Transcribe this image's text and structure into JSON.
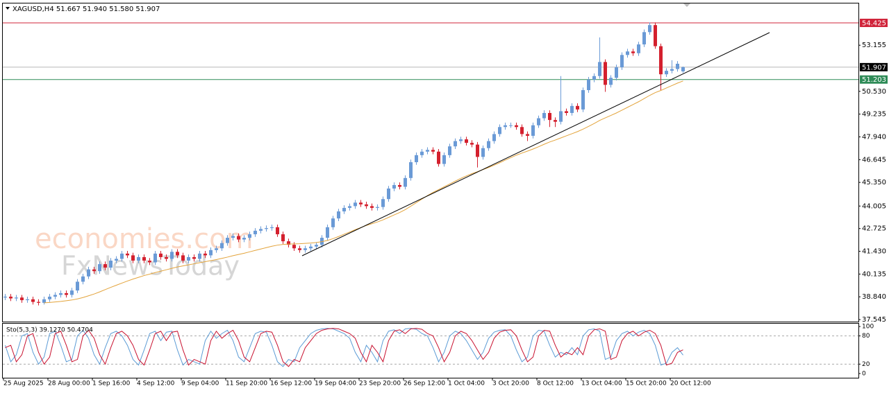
{
  "chart_data": [
    {
      "type": "candlestick",
      "title": "XAGUSD,H4  51.667 51.940 51.580 51.907",
      "watermark": [
        "economies.com",
        "FxNewsToday"
      ],
      "up_color": "#6a9ad6",
      "down_color": "#d4202e",
      "categories": [
        "25 Aug 2025",
        null,
        null,
        null,
        null,
        null,
        null,
        null,
        "28 Aug 00:00",
        null,
        null,
        null,
        null,
        null,
        null,
        null,
        "1 Sep 16:00",
        null,
        null,
        null,
        null,
        null,
        null,
        null,
        "4 Sep 12:00",
        null,
        null,
        null,
        null,
        null,
        null,
        null,
        "9 Sep 04:00",
        null,
        null,
        null,
        null,
        null,
        null,
        null,
        "11 Sep 20:00",
        null,
        null,
        null,
        null,
        null,
        null,
        null,
        "16 Sep 12:00",
        null,
        null,
        null,
        null,
        null,
        null,
        null,
        "19 Sep 04:00",
        null,
        null,
        null,
        null,
        null,
        null,
        null,
        "23 Sep 20:00",
        null,
        null,
        null,
        null,
        null,
        null,
        null,
        "26 Sep 12:00",
        null,
        null,
        null,
        null,
        null,
        null,
        null,
        "1 Oct 04:00",
        null,
        null,
        null,
        null,
        null,
        null,
        null,
        "3 Oct 20:00",
        null,
        null,
        null,
        null,
        null,
        null,
        null,
        "8 Oct 12:00",
        null,
        null,
        null,
        null,
        null,
        null,
        null,
        "13 Oct 04:00",
        null,
        null,
        null,
        null,
        null,
        null,
        null,
        "15 Oct 20:00",
        null,
        null,
        null,
        null,
        null,
        null,
        null,
        "20 Oct 12:00",
        null,
        null
      ],
      "open": [
        38.8,
        38.85,
        38.75,
        38.8,
        38.65,
        38.7,
        38.55,
        38.5,
        38.7,
        38.85,
        38.95,
        39.05,
        38.95,
        39.2,
        39.7,
        40.0,
        40.4,
        40.3,
        40.7,
        40.5,
        40.9,
        41.0,
        41.3,
        41.2,
        40.9,
        41.1,
        40.9,
        40.8,
        41.3,
        41.1,
        41.0,
        41.4,
        41.2,
        40.9,
        41.1,
        41.0,
        41.3,
        41.2,
        41.5,
        41.6,
        41.9,
        42.2,
        42.3,
        42.1,
        42.2,
        42.4,
        42.6,
        42.7,
        42.75,
        42.8,
        42.4,
        42.0,
        41.8,
        41.6,
        41.5,
        41.6,
        41.7,
        41.8,
        42.2,
        42.8,
        43.3,
        43.7,
        43.9,
        44.0,
        44.2,
        44.1,
        44.0,
        43.9,
        43.95,
        44.4,
        45.0,
        45.2,
        45.1,
        45.6,
        46.5,
        46.9,
        47.1,
        47.2,
        47.1,
        46.4,
        46.9,
        47.4,
        47.7,
        47.8,
        47.6,
        47.5,
        46.8,
        47.3,
        47.7,
        48.1,
        48.5,
        48.6,
        48.6,
        48.5,
        48.1,
        48.0,
        48.6,
        49.0,
        49.3,
        48.9,
        48.8,
        49.4,
        49.3,
        49.7,
        49.5,
        50.6,
        51.2,
        51.4,
        52.2,
        50.9,
        51.3,
        51.9,
        52.6,
        52.8,
        52.7,
        53.2,
        53.9,
        54.3,
        53.1,
        51.5,
        51.7,
        51.8,
        51.667
      ],
      "high": [
        39.0,
        39.0,
        38.95,
        38.95,
        38.85,
        38.85,
        38.7,
        38.85,
        39.0,
        39.1,
        39.2,
        39.2,
        39.35,
        39.85,
        40.15,
        40.55,
        40.55,
        40.85,
        40.85,
        41.05,
        41.15,
        41.45,
        41.45,
        41.35,
        41.25,
        41.25,
        41.05,
        41.45,
        41.45,
        41.25,
        41.55,
        41.55,
        41.35,
        41.25,
        41.25,
        41.45,
        41.45,
        41.65,
        41.75,
        42.05,
        42.35,
        42.45,
        42.45,
        42.35,
        42.55,
        42.75,
        42.85,
        42.9,
        42.95,
        42.95,
        42.55,
        42.15,
        41.95,
        41.75,
        41.75,
        41.85,
        41.95,
        42.35,
        42.95,
        43.45,
        43.85,
        44.05,
        44.15,
        44.35,
        44.35,
        44.25,
        44.15,
        44.1,
        44.55,
        45.15,
        45.35,
        45.35,
        45.75,
        46.65,
        47.05,
        47.25,
        47.35,
        47.35,
        47.25,
        47.05,
        47.55,
        47.85,
        47.95,
        47.95,
        47.75,
        47.65,
        47.45,
        47.85,
        48.25,
        48.65,
        48.75,
        48.75,
        48.75,
        48.65,
        48.25,
        48.75,
        49.15,
        49.45,
        49.45,
        49.05,
        51.4,
        49.55,
        49.85,
        49.85,
        50.75,
        51.35,
        51.55,
        53.6,
        52.35,
        51.45,
        52.05,
        52.75,
        52.95,
        52.95,
        53.35,
        54.05,
        54.45,
        54.45,
        53.25,
        51.85,
        52.3,
        52.25,
        51.94
      ],
      "low": [
        38.65,
        38.6,
        38.6,
        38.5,
        38.5,
        38.4,
        38.35,
        38.4,
        38.55,
        38.7,
        38.8,
        38.8,
        38.8,
        39.05,
        39.55,
        39.85,
        40.15,
        40.15,
        40.35,
        40.35,
        40.75,
        40.85,
        41.05,
        40.75,
        40.75,
        40.75,
        40.65,
        40.65,
        40.95,
        40.85,
        40.85,
        41.05,
        40.75,
        40.75,
        40.85,
        40.85,
        41.05,
        41.05,
        41.35,
        41.45,
        41.75,
        42.05,
        41.95,
        41.95,
        42.05,
        42.25,
        42.45,
        42.55,
        42.6,
        42.25,
        41.85,
        41.65,
        41.45,
        41.35,
        41.35,
        41.45,
        41.55,
        41.65,
        42.05,
        42.65,
        43.15,
        43.55,
        43.75,
        43.85,
        43.95,
        43.85,
        43.75,
        43.75,
        43.8,
        44.25,
        44.85,
        44.95,
        44.95,
        45.45,
        46.35,
        46.75,
        46.95,
        46.95,
        46.25,
        46.25,
        46.75,
        47.25,
        47.55,
        47.45,
        47.35,
        46.2,
        46.65,
        47.15,
        47.55,
        47.95,
        48.35,
        48.45,
        48.35,
        47.95,
        47.7,
        47.85,
        48.45,
        48.85,
        48.5,
        48.5,
        48.65,
        49.15,
        49.15,
        49.35,
        49.35,
        50.45,
        51.05,
        51.25,
        50.5,
        50.75,
        51.15,
        51.75,
        52.45,
        52.55,
        52.55,
        53.05,
        53.75,
        52.95,
        50.6,
        51.35,
        51.55,
        51.65,
        51.58
      ],
      "close": [
        38.85,
        38.75,
        38.8,
        38.65,
        38.7,
        38.55,
        38.5,
        38.7,
        38.85,
        38.95,
        39.05,
        38.95,
        39.2,
        39.7,
        40.0,
        40.4,
        40.3,
        40.7,
        40.5,
        40.9,
        41.0,
        41.3,
        41.2,
        40.9,
        41.1,
        40.9,
        40.8,
        41.3,
        41.1,
        41.0,
        41.4,
        41.2,
        40.9,
        41.1,
        41.0,
        41.3,
        41.2,
        41.5,
        41.6,
        41.9,
        42.2,
        42.3,
        42.1,
        42.2,
        42.4,
        42.6,
        42.7,
        42.75,
        42.8,
        42.4,
        42.0,
        41.8,
        41.6,
        41.5,
        41.6,
        41.7,
        41.8,
        42.2,
        42.8,
        43.3,
        43.7,
        43.9,
        44.0,
        44.2,
        44.1,
        44.0,
        43.9,
        43.95,
        44.4,
        45.0,
        45.2,
        45.1,
        45.6,
        46.5,
        46.9,
        47.1,
        47.2,
        47.1,
        46.4,
        46.9,
        47.4,
        47.7,
        47.8,
        47.6,
        47.5,
        46.8,
        47.3,
        47.7,
        48.1,
        48.5,
        48.6,
        48.6,
        48.5,
        48.1,
        48.0,
        48.6,
        49.0,
        49.3,
        48.9,
        48.8,
        49.4,
        49.3,
        49.7,
        49.5,
        50.6,
        51.2,
        51.4,
        52.2,
        50.9,
        51.3,
        51.9,
        52.6,
        52.8,
        52.7,
        53.2,
        53.9,
        54.3,
        53.1,
        51.5,
        51.7,
        51.8,
        52.1,
        51.907
      ],
      "moving_average": {
        "color": "#e3a33a",
        "values": [
          null,
          null,
          null,
          null,
          null,
          null,
          null,
          38.5,
          38.52,
          38.55,
          38.58,
          38.62,
          38.66,
          38.72,
          38.8,
          38.9,
          39.0,
          39.12,
          39.25,
          39.38,
          39.5,
          39.62,
          39.74,
          39.85,
          39.95,
          40.05,
          40.13,
          40.22,
          40.3,
          40.38,
          40.46,
          40.54,
          40.6,
          40.66,
          40.72,
          40.78,
          40.84,
          40.9,
          40.96,
          41.03,
          41.1,
          41.18,
          41.25,
          41.32,
          41.4,
          41.48,
          41.56,
          41.64,
          41.72,
          41.78,
          41.82,
          41.84,
          41.85,
          41.86,
          41.88,
          41.9,
          41.93,
          41.98,
          42.05,
          42.15,
          42.27,
          42.4,
          42.53,
          42.66,
          42.78,
          42.9,
          43.0,
          43.1,
          43.22,
          43.36,
          43.5,
          43.64,
          43.8,
          44.0,
          44.2,
          44.4,
          44.6,
          44.78,
          44.94,
          45.1,
          45.26,
          45.42,
          45.58,
          45.72,
          45.85,
          45.96,
          46.08,
          46.2,
          46.33,
          46.47,
          46.62,
          46.76,
          46.9,
          47.02,
          47.13,
          47.25,
          47.38,
          47.52,
          47.65,
          47.76,
          47.88,
          48.0,
          48.12,
          48.24,
          48.38,
          48.54,
          48.7,
          48.88,
          49.02,
          49.16,
          49.3,
          49.46,
          49.62,
          49.78,
          49.94,
          50.12,
          50.3,
          50.46,
          50.58,
          50.72,
          50.86,
          51.0,
          51.12
        ]
      },
      "hlines": [
        {
          "value": 54.425,
          "line_color": "#d0243a",
          "label_color": "#d0243a"
        },
        {
          "value": 51.907,
          "line_color": "#b8b8b8",
          "label_color": "#000000"
        },
        {
          "value": 51.203,
          "line_color": "#2e8b57",
          "label_color": "#2e8b57"
        }
      ],
      "ylim": [
        37.43,
        55.53
      ],
      "yticks": [
        37.545,
        {
          "value": 38.84,
          "label": "38.840"
        },
        40.135,
        {
          "value": 41.43,
          "label": "41.430"
        },
        42.725,
        44.005,
        {
          "value": 45.35,
          "label": "45.350"
        },
        46.645,
        {
          "value": 47.94,
          "label": "47.940"
        },
        49.235,
        {
          "value": 50.53,
          "label": "50.530"
        },
        53.155
      ]
    },
    {
      "type": "line",
      "title": "Sto(5,3,3) 39.1270 50.4704",
      "series": [
        {
          "color": "#5b9bd5",
          "values": [
            60,
            25,
            40,
            80,
            85,
            45,
            20,
            35,
            85,
            90,
            60,
            25,
            30,
            80,
            92,
            75,
            40,
            20,
            55,
            85,
            90,
            80,
            60,
            30,
            18,
            50,
            85,
            90,
            70,
            88,
            90,
            50,
            18,
            30,
            25,
            20,
            70,
            90,
            75,
            85,
            92,
            70,
            35,
            25,
            55,
            85,
            90,
            88,
            60,
            25,
            15,
            30,
            25,
            55,
            70,
            85,
            92,
            95,
            96,
            95,
            90,
            85,
            75,
            45,
            25,
            60,
            45,
            25,
            70,
            90,
            93,
            85,
            95,
            96,
            94,
            85,
            80,
            55,
            25,
            45,
            80,
            90,
            85,
            70,
            50,
            30,
            45,
            75,
            88,
            92,
            93,
            80,
            50,
            25,
            35,
            80,
            92,
            90,
            60,
            35,
            45,
            40,
            55,
            40,
            80,
            93,
            95,
            90,
            30,
            35,
            70,
            85,
            90,
            80,
            88,
            92,
            85,
            60,
            18,
            22,
            45,
            55,
            39.127
          ]
        },
        {
          "color": "#c8102e",
          "values": [
            55,
            60,
            25,
            40,
            80,
            85,
            45,
            20,
            35,
            85,
            90,
            60,
            25,
            30,
            80,
            92,
            75,
            40,
            20,
            55,
            85,
            90,
            80,
            60,
            30,
            18,
            50,
            85,
            90,
            70,
            88,
            90,
            50,
            18,
            30,
            25,
            20,
            70,
            90,
            75,
            85,
            92,
            70,
            35,
            25,
            55,
            85,
            90,
            88,
            60,
            25,
            15,
            30,
            25,
            55,
            70,
            85,
            92,
            95,
            96,
            95,
            90,
            85,
            75,
            45,
            25,
            60,
            45,
            25,
            70,
            90,
            93,
            85,
            95,
            96,
            94,
            85,
            80,
            55,
            25,
            45,
            80,
            90,
            85,
            70,
            50,
            30,
            45,
            75,
            88,
            92,
            93,
            80,
            50,
            25,
            35,
            80,
            92,
            90,
            60,
            35,
            45,
            40,
            55,
            40,
            80,
            93,
            95,
            90,
            30,
            35,
            70,
            85,
            90,
            80,
            88,
            92,
            85,
            60,
            18,
            22,
            45,
            50.4704
          ]
        }
      ],
      "levels": [
        80,
        20
      ],
      "ylim": [
        -9,
        106
      ],
      "yticks": [
        100,
        80,
        20,
        0
      ]
    }
  ]
}
